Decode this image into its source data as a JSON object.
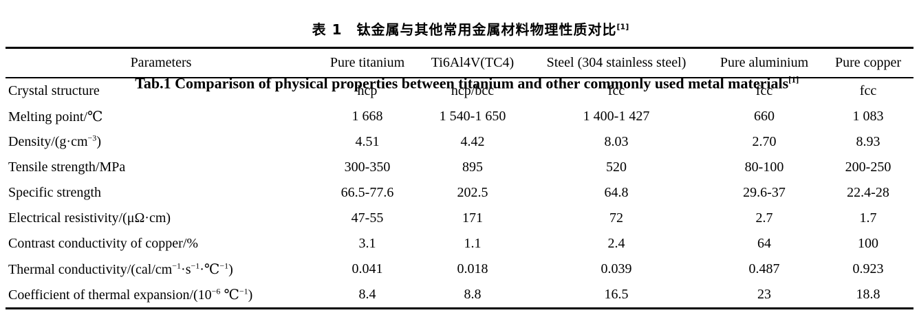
{
  "colors": {
    "text": "#000000",
    "background": "#ffffff"
  },
  "title_cn": {
    "text": "表 1　钛金属与其他常用金属材料物理性质对比",
    "ref": "[1]"
  },
  "title_en": {
    "text": "Tab.1 Comparison of physical properties between titanium and other commonly used metal materials",
    "ref": "[1]"
  },
  "table": {
    "columns": [
      "Parameters",
      "Pure titanium",
      "Ti6Al4V(TC4)",
      "Steel (304 stainless steel)",
      "Pure aluminium",
      "Pure copper"
    ],
    "rows": [
      {
        "label": [
          {
            "text": "Crystal structure",
            "sup": false
          }
        ],
        "values": [
          "hcp",
          "hcp/bcc",
          "fcc",
          "fcc",
          "fcc"
        ]
      },
      {
        "label": [
          {
            "text": "Melting point/℃",
            "sup": false
          }
        ],
        "values": [
          "1 668",
          "1 540-1 650",
          "1 400-1 427",
          "660",
          "1 083"
        ]
      },
      {
        "label": [
          {
            "text": "Density/(g·cm",
            "sup": false
          },
          {
            "text": "−3",
            "sup": true
          },
          {
            "text": ")",
            "sup": false
          }
        ],
        "values": [
          "4.51",
          "4.42",
          "8.03",
          "2.70",
          "8.93"
        ]
      },
      {
        "label": [
          {
            "text": "Tensile strength/MPa",
            "sup": false
          }
        ],
        "values": [
          "300-350",
          "895",
          "520",
          "80-100",
          "200-250"
        ]
      },
      {
        "label": [
          {
            "text": "Specific strength",
            "sup": false
          }
        ],
        "values": [
          "66.5-77.6",
          "202.5",
          "64.8",
          "29.6-37",
          "22.4-28"
        ]
      },
      {
        "label": [
          {
            "text": "Electrical resistivity/(μΩ·cm)",
            "sup": false
          }
        ],
        "values": [
          "47-55",
          "171",
          "72",
          "2.7",
          "1.7"
        ]
      },
      {
        "label": [
          {
            "text": "Contrast conductivity of copper/%",
            "sup": false
          }
        ],
        "values": [
          "3.1",
          "1.1",
          "2.4",
          "64",
          "100"
        ]
      },
      {
        "label": [
          {
            "text": "Thermal conductivity/(cal/cm",
            "sup": false
          },
          {
            "text": "−1",
            "sup": true
          },
          {
            "text": "·s",
            "sup": false
          },
          {
            "text": "−1",
            "sup": true
          },
          {
            "text": "·℃",
            "sup": false
          },
          {
            "text": "−1",
            "sup": true
          },
          {
            "text": ")",
            "sup": false
          }
        ],
        "values": [
          "0.041",
          "0.018",
          "0.039",
          "0.487",
          "0.923"
        ]
      },
      {
        "label": [
          {
            "text": "Coefficient of thermal expansion/(10",
            "sup": false
          },
          {
            "text": "−6",
            "sup": true
          },
          {
            "text": " ℃",
            "sup": false
          },
          {
            "text": "−1",
            "sup": true
          },
          {
            "text": ")",
            "sup": false
          }
        ],
        "values": [
          "8.4",
          "8.8",
          "16.5",
          "23",
          "18.8"
        ]
      }
    ]
  }
}
